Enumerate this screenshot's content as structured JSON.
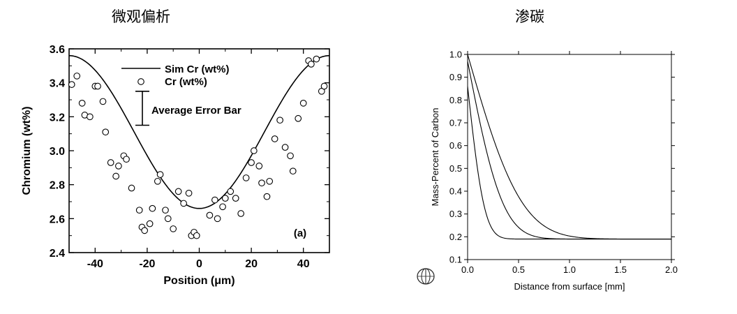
{
  "titles": {
    "left": "微观偏析",
    "right": "渗碳"
  },
  "chart_data": [
    {
      "type": "scatter",
      "xlabel": "Position  (μm)",
      "ylabel": "Chromium  (wt%)",
      "xlim": [
        -50,
        50
      ],
      "ylim": [
        2.4,
        3.6
      ],
      "xticks": [
        "-40",
        "-20",
        "0",
        "20",
        "40"
      ],
      "xtick_values": [
        -40,
        -20,
        0,
        20,
        40
      ],
      "yticks": [
        "2.4",
        "2.6",
        "2.8",
        "3.0",
        "3.2",
        "3.4",
        "3.6"
      ],
      "ytick_values": [
        2.4,
        2.6,
        2.8,
        3.0,
        3.2,
        3.4,
        3.6
      ],
      "legend": {
        "line_label": "Sim  Cr   (wt%)",
        "marker_label": "Cr   (wt%)",
        "errorbar_label": "Average  Error  Bar"
      },
      "errorbar_halfwidth": 0.1,
      "panel_label": "(a)",
      "curve": {
        "name": "Sim  Cr   (wt%)",
        "min": 2.66,
        "max": 3.56,
        "period": 100
      },
      "series": [
        {
          "name": "Cr   (wt%)",
          "points": [
            [
              -49,
              3.39
            ],
            [
              -47,
              3.44
            ],
            [
              -45,
              3.28
            ],
            [
              -44,
              3.21
            ],
            [
              -42,
              3.2
            ],
            [
              -40,
              3.38
            ],
            [
              -39,
              3.38
            ],
            [
              -37,
              3.29
            ],
            [
              -36,
              3.11
            ],
            [
              -34,
              2.93
            ],
            [
              -32,
              2.85
            ],
            [
              -31,
              2.91
            ],
            [
              -29,
              2.97
            ],
            [
              -28,
              2.95
            ],
            [
              -26,
              2.78
            ],
            [
              -23,
              2.65
            ],
            [
              -22,
              2.55
            ],
            [
              -21,
              2.53
            ],
            [
              -19,
              2.57
            ],
            [
              -18,
              2.66
            ],
            [
              -16,
              2.82
            ],
            [
              -15,
              2.86
            ],
            [
              -13,
              2.65
            ],
            [
              -12,
              2.6
            ],
            [
              -10,
              2.54
            ],
            [
              -8,
              2.76
            ],
            [
              -6,
              2.69
            ],
            [
              -4,
              2.75
            ],
            [
              -3,
              2.5
            ],
            [
              -2,
              2.52
            ],
            [
              -1,
              2.5
            ],
            [
              4,
              2.62
            ],
            [
              6,
              2.71
            ],
            [
              7,
              2.6
            ],
            [
              9,
              2.67
            ],
            [
              10,
              2.72
            ],
            [
              12,
              2.76
            ],
            [
              14,
              2.72
            ],
            [
              16,
              2.63
            ],
            [
              18,
              2.84
            ],
            [
              20,
              2.93
            ],
            [
              21,
              3.0
            ],
            [
              23,
              2.91
            ],
            [
              24,
              2.81
            ],
            [
              26,
              2.73
            ],
            [
              27,
              2.82
            ],
            [
              29,
              3.07
            ],
            [
              31,
              3.18
            ],
            [
              33,
              3.02
            ],
            [
              35,
              2.97
            ],
            [
              36,
              2.88
            ],
            [
              38,
              3.19
            ],
            [
              40,
              3.28
            ],
            [
              42,
              3.53
            ],
            [
              43,
              3.51
            ],
            [
              45,
              3.54
            ],
            [
              47,
              3.35
            ],
            [
              48,
              3.38
            ]
          ]
        }
      ]
    },
    {
      "type": "line",
      "xlabel": "Distance from surface [mm]",
      "ylabel": "Mass-Percent of Carbon",
      "xlim": [
        0.0,
        2.0
      ],
      "ylim": [
        0.1,
        1.0
      ],
      "xticks": [
        "0.0",
        "0.5",
        "1.0",
        "1.5",
        "2.0"
      ],
      "xtick_values": [
        0.0,
        0.5,
        1.0,
        1.5,
        2.0
      ],
      "yticks": [
        "0.1",
        "0.2",
        "0.3",
        "0.4",
        "0.5",
        "0.6",
        "0.7",
        "0.8",
        "0.9",
        "1.0"
      ],
      "ytick_values": [
        0.1,
        0.2,
        0.3,
        0.4,
        0.5,
        0.6,
        0.7,
        0.8,
        0.9,
        1.0
      ],
      "base_level": 0.19,
      "series": [
        {
          "surface_value": 0.86,
          "depth": 0.3
        },
        {
          "surface_value": 0.97,
          "depth": 0.62
        },
        {
          "surface_value": 1.0,
          "depth": 0.95
        }
      ]
    }
  ]
}
